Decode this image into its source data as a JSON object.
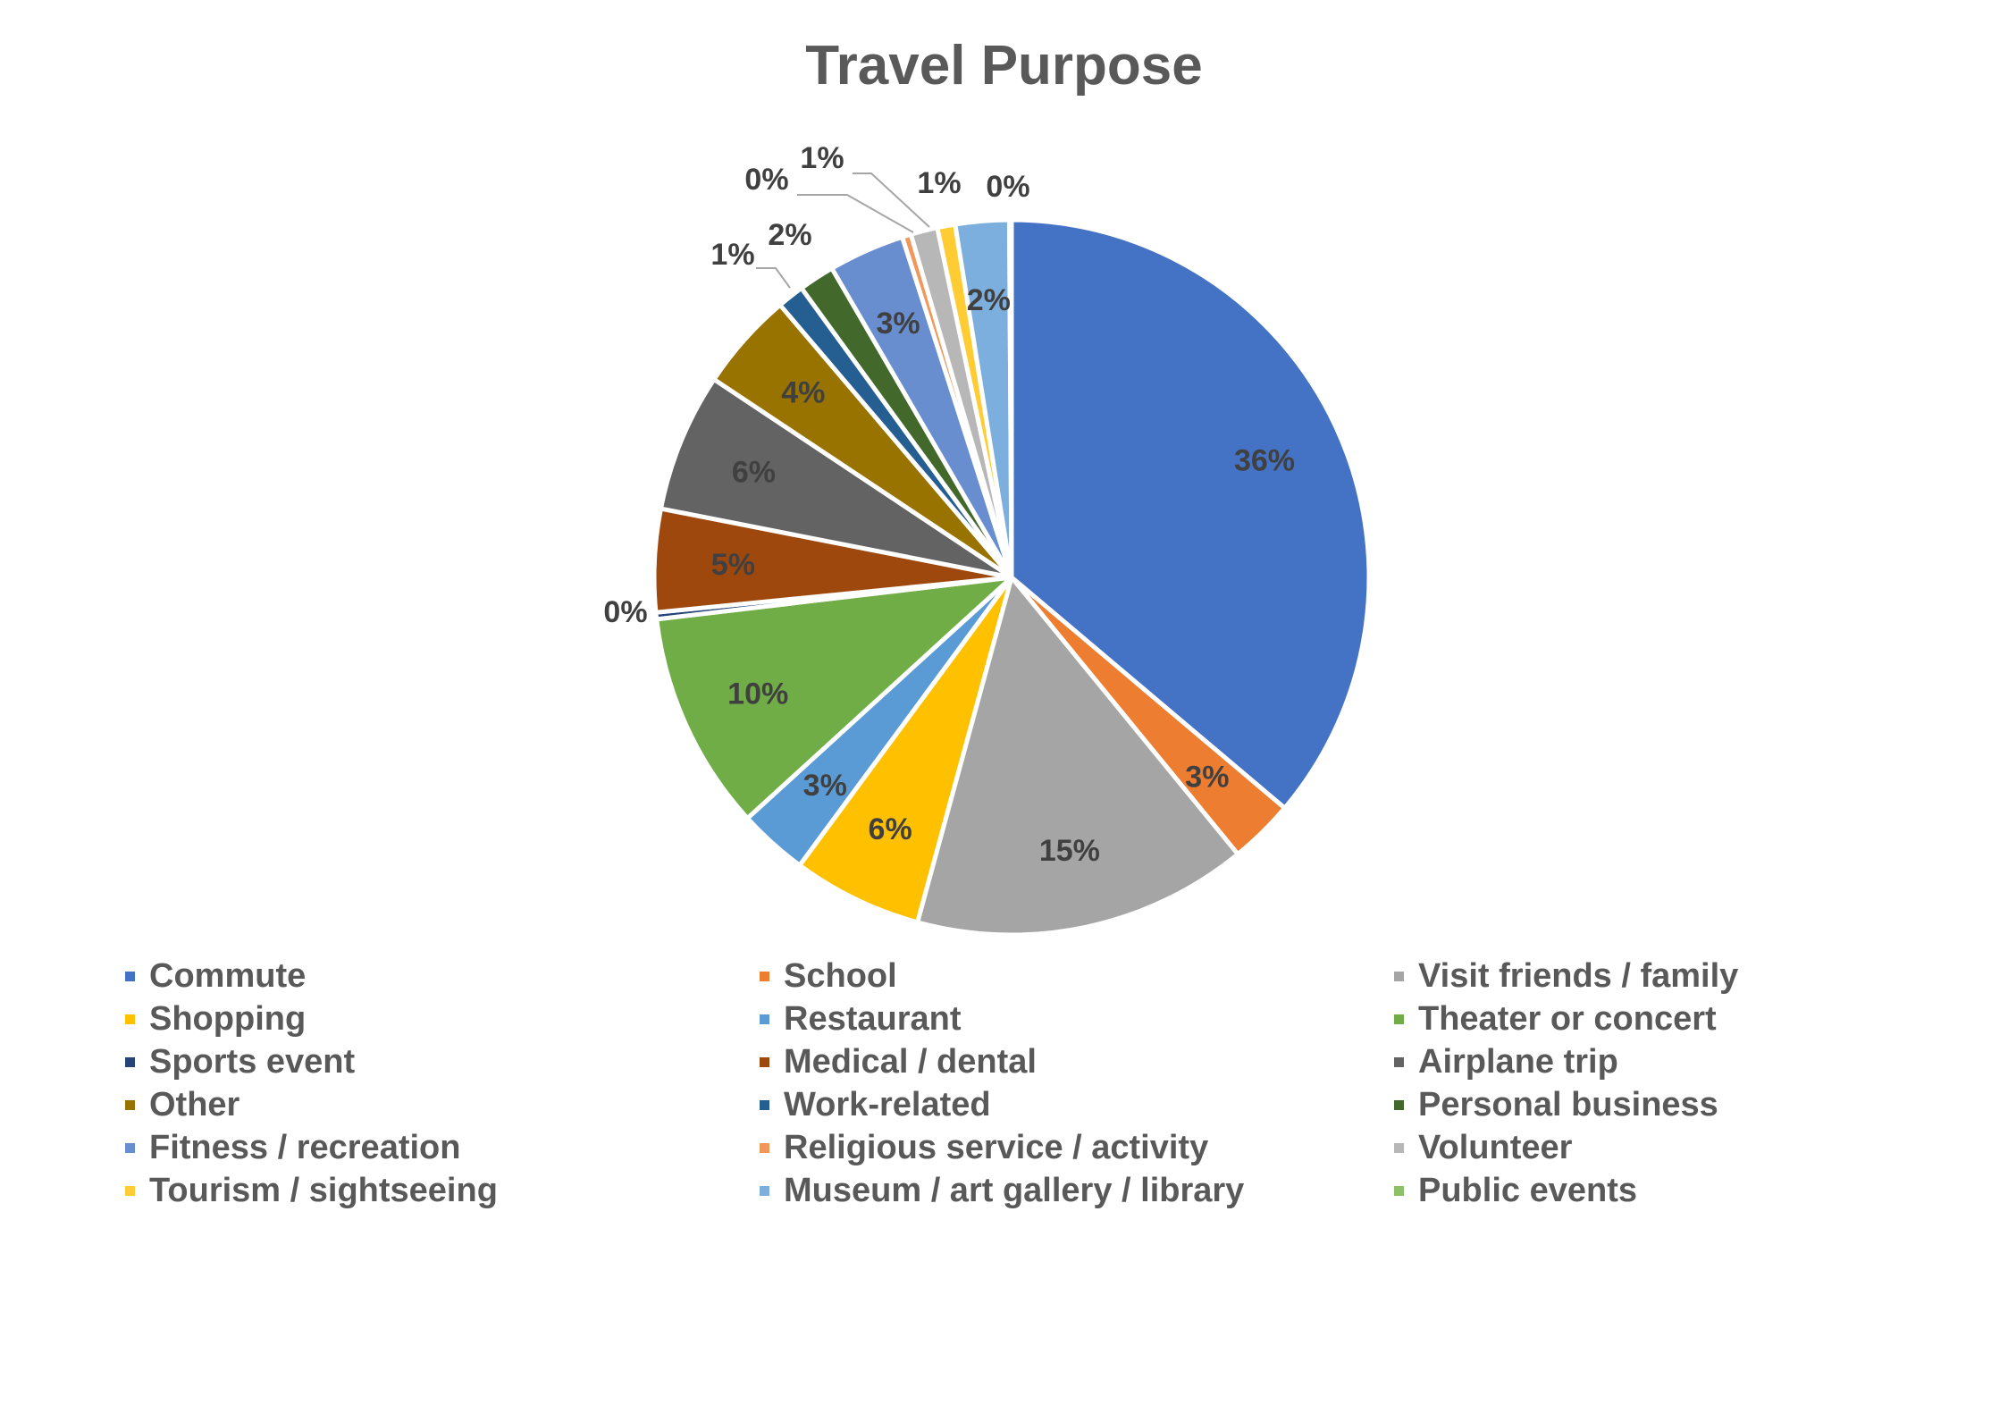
{
  "chart_data": {
    "type": "pie",
    "title": "Travel Purpose",
    "start_angle_deg": 0,
    "direction": "clockwise",
    "legend_position": "bottom",
    "slices": [
      {
        "label": "Commute",
        "value": 35.8,
        "display": "36%",
        "color": "#4472C4"
      },
      {
        "label": "School",
        "value": 2.9,
        "display": "3%",
        "color": "#ED7D31"
      },
      {
        "label": "Visit friends / family",
        "value": 15.0,
        "display": "15%",
        "color": "#A5A5A5"
      },
      {
        "label": "Shopping",
        "value": 5.8,
        "display": "6%",
        "color": "#FFC000"
      },
      {
        "label": "Restaurant",
        "value": 3.1,
        "display": "3%",
        "color": "#5B9BD5"
      },
      {
        "label": "Theater or concert",
        "value": 9.8,
        "display": "10%",
        "color": "#70AD47"
      },
      {
        "label": "Sports event",
        "value": 0.3,
        "display": "0%",
        "color": "#264478"
      },
      {
        "label": "Medical / dental",
        "value": 4.6,
        "display": "5%",
        "color": "#9E480E"
      },
      {
        "label": "Airplane trip",
        "value": 6.2,
        "display": "6%",
        "color": "#636363"
      },
      {
        "label": "Other",
        "value": 4.4,
        "display": "4%",
        "color": "#997300"
      },
      {
        "label": "Work-related",
        "value": 1.2,
        "display": "1%",
        "color": "#255E91"
      },
      {
        "label": "Personal business",
        "value": 1.6,
        "display": "2%",
        "color": "#43682B"
      },
      {
        "label": "Fitness / recreation",
        "value": 3.4,
        "display": "3%",
        "color": "#698ED0"
      },
      {
        "label": "Religious service / activity",
        "value": 0.4,
        "display": "0%",
        "color": "#F1975A"
      },
      {
        "label": "Volunteer",
        "value": 1.2,
        "display": "1%",
        "color": "#B7B7B7"
      },
      {
        "label": "Tourism / sightseeing",
        "value": 0.8,
        "display": "1%",
        "color": "#FFCD33"
      },
      {
        "label": "Museum / art gallery / library",
        "value": 2.4,
        "display": "2%",
        "color": "#7CAFDD"
      },
      {
        "label": "Public events",
        "value": 0.1,
        "display": "0%",
        "color": "#8CC168"
      }
    ]
  }
}
